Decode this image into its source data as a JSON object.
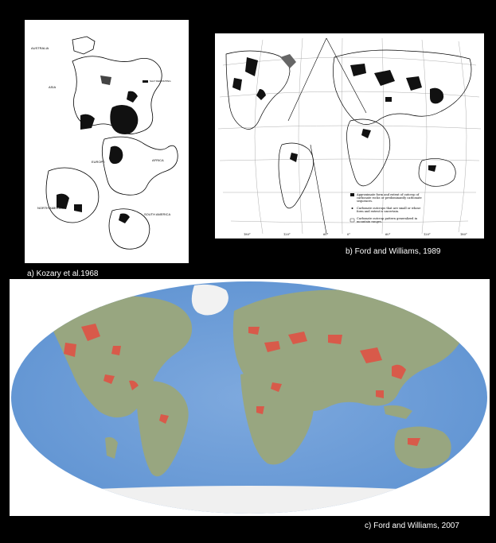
{
  "panels": {
    "a": {
      "caption": "a)  Kozary et al.1968",
      "labels": {
        "australia": "AUSTRALIA",
        "asia": "ASIA",
        "europe": "EUROPE",
        "africa": "AFRICA",
        "north_america": "NORTH AMERICA",
        "south_america": "SOUTH AMERICA",
        "legend": "SALT DEPOSITING"
      }
    },
    "b": {
      "caption": "b)  Ford and Williams, 1989",
      "legend": [
        "Approximate form and extent of outcrop of",
        "carbonate rocks or predominantly carbonate",
        "sequences.",
        "Carbonate outcrops that are small or whose",
        "form and extent is uncertain.",
        "Carbonate outcrop pattern generalized in",
        "mountain ranges."
      ],
      "ticks": [
        "180°",
        "120°",
        "60°",
        "0°",
        "60°",
        "120°",
        "180°"
      ]
    },
    "c": {
      "caption": "c)  Ford and Williams, 2007"
    }
  },
  "colors": {
    "background": "#000000",
    "ocean": "#6e9fd8",
    "land": "#9aa882",
    "carbonate": "#d85a4a",
    "ice": "#f2f2f2"
  }
}
